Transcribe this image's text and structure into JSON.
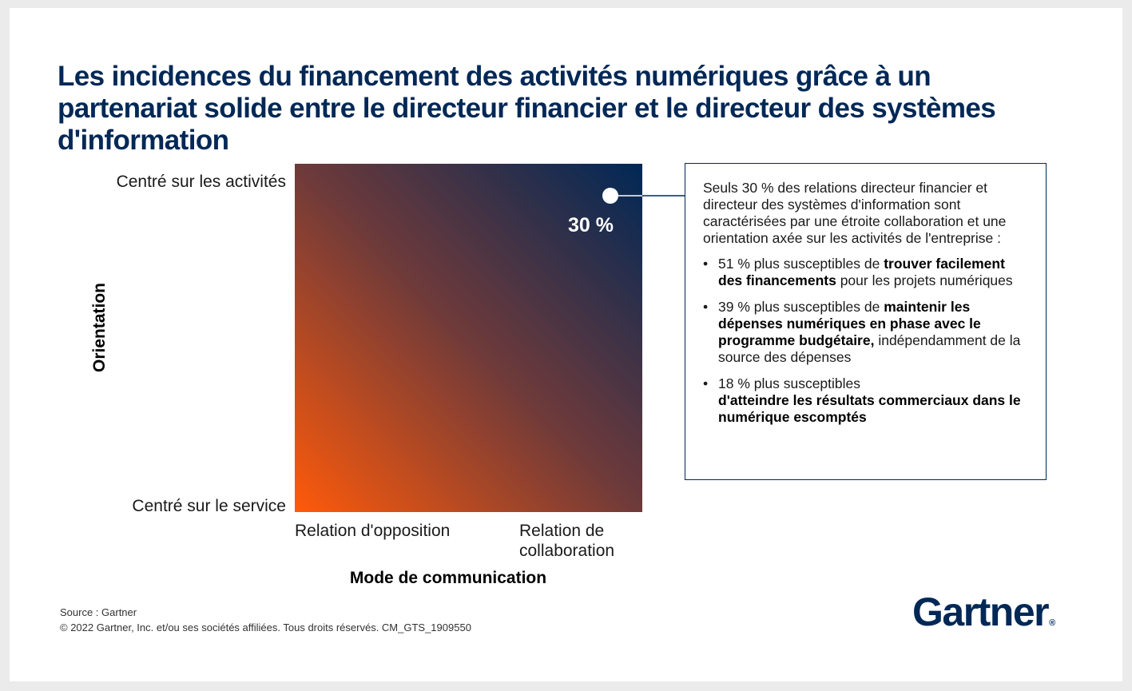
{
  "title": "Les incidences du financement des activités numériques grâce à un partenariat solide entre le directeur financier et le directeur des systèmes d'information",
  "chart_data": {
    "type": "heatmap",
    "xlabel": "Mode de communication",
    "ylabel": "Orientation",
    "x_ticks": [
      "Relation d'opposition",
      "Relation de collaboration"
    ],
    "y_ticks": [
      "Centré sur le service",
      "Centré sur les activités"
    ],
    "points": [
      {
        "x": "Relation de collaboration",
        "y": "Centré sur les activités",
        "label": "30 %",
        "value": 30
      }
    ],
    "gradient": {
      "low_color": "#ff5a0a",
      "high_color": "#002856"
    }
  },
  "callout": {
    "intro": "Seuls 30 % des relations directeur financier et directeur des systèmes d'information sont caractérisées par une étroite collaboration et une orientation axée sur les activités de l'entreprise :",
    "bullet_symbol": "•",
    "bullets": [
      {
        "pre": "51 % plus susceptibles de ",
        "bold": "trouver facilement des financements",
        "post": " pour les projets numériques"
      },
      {
        "pre": "39 % plus susceptibles de ",
        "bold": "maintenir les dépenses numériques en phase avec le programme budgétaire,",
        "post": " indépendamment de la source des dépenses"
      },
      {
        "pre": "18 % plus susceptibles ",
        "bold": "d'atteindre les résultats commerciaux dans le numérique escomptés",
        "post": ""
      }
    ]
  },
  "footer": {
    "source": "Source : Gartner",
    "copyright": "© 2022 Gartner, Inc. et/ou ses sociétés affiliées. Tous droits réservés. CM_GTS_1909550"
  },
  "logo": {
    "text": "Gartner",
    "mark": "®"
  },
  "colors": {
    "navy": "#002856",
    "orange": "#ff5a0a"
  }
}
